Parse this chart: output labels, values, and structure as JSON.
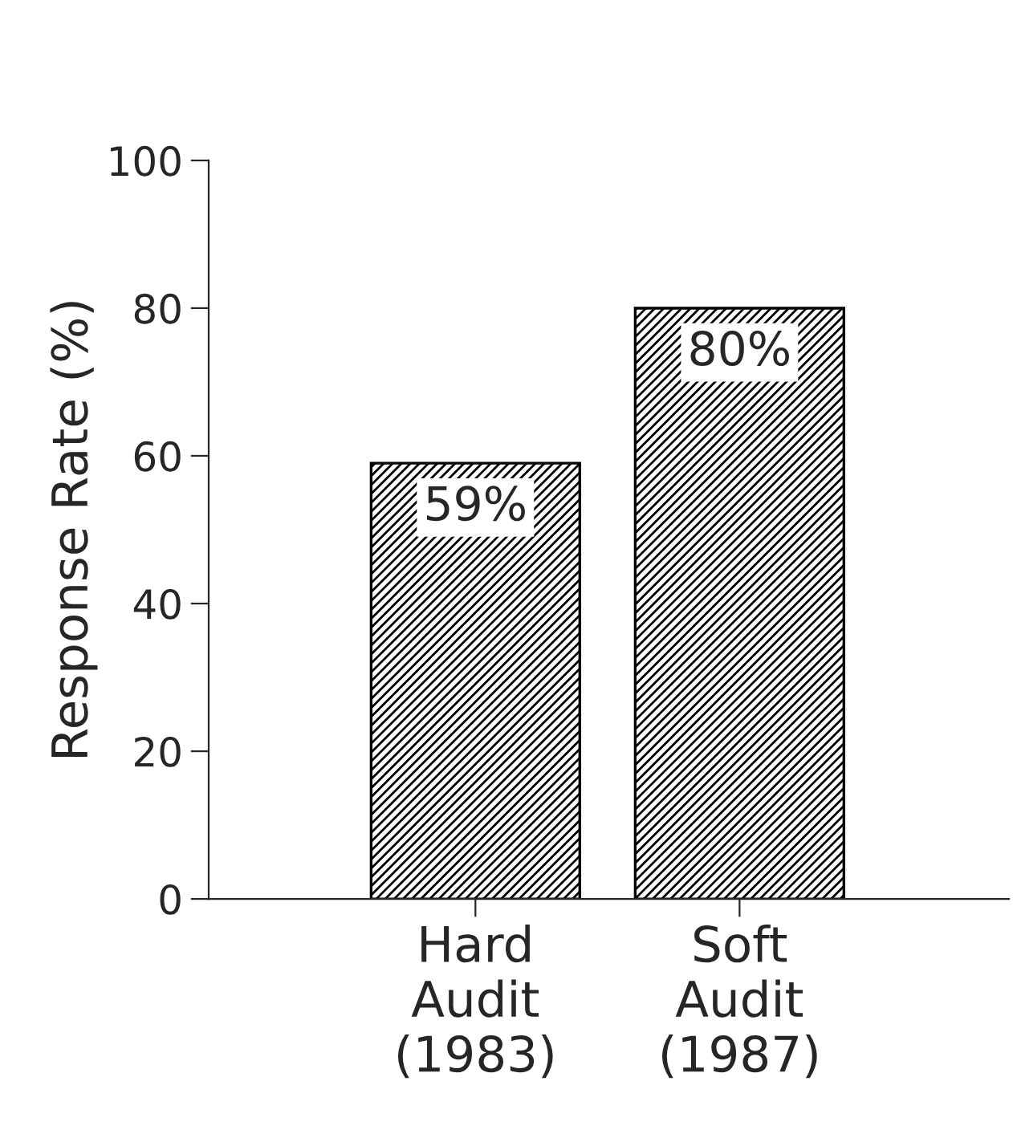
{
  "chart_data": {
    "type": "bar",
    "ylabel": "Response Rate (%)",
    "categories": [
      "Hard\nAudit\n(1983)",
      "Soft\nAudit\n(1987)"
    ],
    "values": [
      59,
      80
    ],
    "value_labels": [
      "59%",
      "80%"
    ],
    "color": "#000000",
    "ylim": [
      0,
      100
    ],
    "yticks": [
      0,
      20,
      40,
      60,
      80,
      100
    ],
    "grid": false,
    "legend": false
  }
}
